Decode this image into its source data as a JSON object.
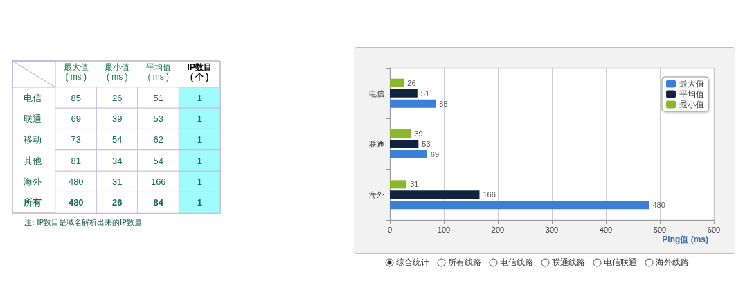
{
  "chart_data": [
    {
      "type": "heatmap",
      "categories": [
        "最大值\n( ms )",
        "最小值\n( ms )",
        "平均值\n( ms )",
        "IP数目\n( 个 )"
      ],
      "y_categories": [
        "电信",
        "联通",
        "移动",
        "其他",
        "海外",
        "所有"
      ],
      "cells": [
        [
          85,
          26,
          51,
          1
        ],
        [
          69,
          39,
          53,
          1
        ],
        [
          73,
          54,
          62,
          1
        ],
        [
          81,
          34,
          54,
          1
        ],
        [
          480,
          31,
          166,
          1
        ],
        [
          480,
          26,
          84,
          1
        ]
      ],
      "data_labels": true,
      "annotations": [
        "注: IP数目是域名解析出来的IP数量"
      ]
    },
    {
      "type": "bar",
      "orientation": "horizontal",
      "categories": [
        "电信",
        "联通",
        "海外"
      ],
      "series": [
        {
          "name": "最大值",
          "color": "#3a80d6",
          "values": [
            85,
            69,
            480
          ]
        },
        {
          "name": "平均值",
          "color": "#10243d",
          "values": [
            51,
            53,
            166
          ]
        },
        {
          "name": "最小值",
          "color": "#8bb82b",
          "values": [
            26,
            39,
            31
          ]
        }
      ],
      "xlim": [
        0,
        600
      ],
      "xticks": [
        0,
        100,
        200,
        300,
        400,
        500,
        600
      ],
      "xlabel": "Ping值 (ms)",
      "grid": "x",
      "legend": "top right",
      "data_labels": true,
      "annotations": [
        "综合统计",
        "所有线路",
        "电信线路",
        "联通线路",
        "电信联通",
        "海外线路"
      ]
    }
  ]
}
